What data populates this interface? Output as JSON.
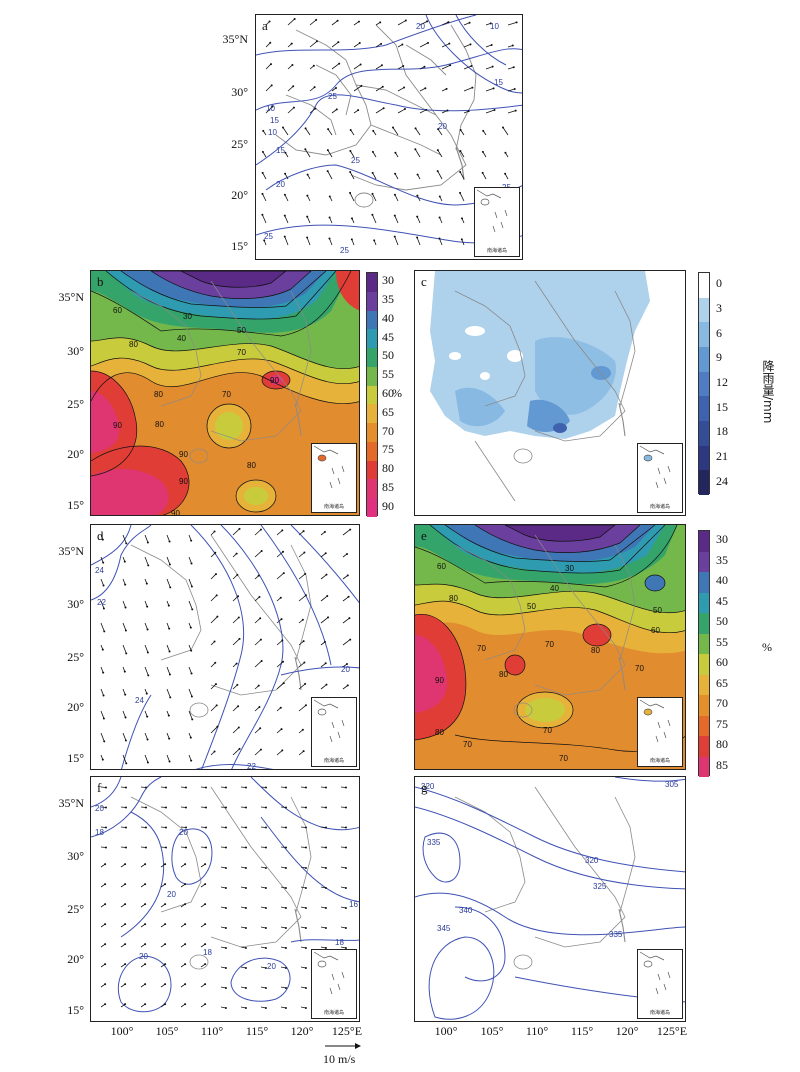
{
  "lat_labels": [
    "35°N",
    "30°",
    "25°",
    "20°",
    "15°"
  ],
  "lon_labels": [
    "100°",
    "105°",
    "110°",
    "115°",
    "120°",
    "125°E"
  ],
  "inset_text": "南海诸岛",
  "vector_scale": "10 m/s",
  "panels": {
    "a": {
      "label": "a",
      "contours": [
        "20",
        "10",
        "15",
        "25",
        "10",
        "15",
        "25",
        "20",
        "15",
        "10",
        "20",
        "25",
        "25",
        "25"
      ]
    },
    "b": {
      "label": "b",
      "contours": [
        "30",
        "40",
        "50",
        "60",
        "70",
        "80",
        "90",
        "80",
        "70",
        "90",
        "90",
        "80",
        "90",
        "90",
        "80"
      ]
    },
    "c": {
      "label": "c"
    },
    "d": {
      "label": "d",
      "contours": [
        "24",
        "22",
        "20",
        "24",
        "22"
      ]
    },
    "e": {
      "label": "e",
      "contours": [
        "30",
        "40",
        "50",
        "60",
        "60",
        "50",
        "80",
        "70",
        "70",
        "80",
        "80",
        "90",
        "70",
        "80",
        "70",
        "70",
        "70"
      ]
    },
    "f": {
      "label": "f",
      "contours": [
        "20",
        "18",
        "20",
        "20",
        "16",
        "18",
        "20",
        "20",
        "18"
      ]
    },
    "g": {
      "label": "g",
      "contours": [
        "320",
        "305",
        "335",
        "320",
        "325",
        "340",
        "345",
        "335"
      ]
    }
  },
  "colorbars": {
    "humidity_b": {
      "ticks": [
        "30",
        "35",
        "40",
        "45",
        "50",
        "55",
        "60",
        "65",
        "70",
        "75",
        "80",
        "85",
        "90"
      ],
      "unit": "%",
      "colors": [
        "#5b2a86",
        "#6a3f9e",
        "#3f76b6",
        "#2f9bb0",
        "#35a46a",
        "#74b84b",
        "#c8cc3c",
        "#e6b23a",
        "#e58f2c",
        "#e46a2a",
        "#df3d36",
        "#df3571",
        "#e0307f"
      ]
    },
    "precip_c": {
      "ticks": [
        "0",
        "3",
        "6",
        "9",
        "12",
        "15",
        "18",
        "21",
        "24"
      ],
      "unit": "降雨量/mm",
      "colors": [
        "#ffffff",
        "#aed1ec",
        "#87b9e2",
        "#6399d2",
        "#4f7cc3",
        "#3f62ae",
        "#354c96",
        "#2d3880",
        "#24275f"
      ]
    },
    "humidity_e": {
      "ticks": [
        "30",
        "35",
        "40",
        "45",
        "50",
        "55",
        "60",
        "65",
        "70",
        "75",
        "80",
        "85"
      ],
      "unit": "%",
      "colors": [
        "#5b2a86",
        "#6a3f9e",
        "#3f76b6",
        "#2f9bb0",
        "#35a46a",
        "#74b84b",
        "#c8cc3c",
        "#e6b23a",
        "#e58f2c",
        "#e46a2a",
        "#df3d36",
        "#df3571"
      ]
    }
  }
}
